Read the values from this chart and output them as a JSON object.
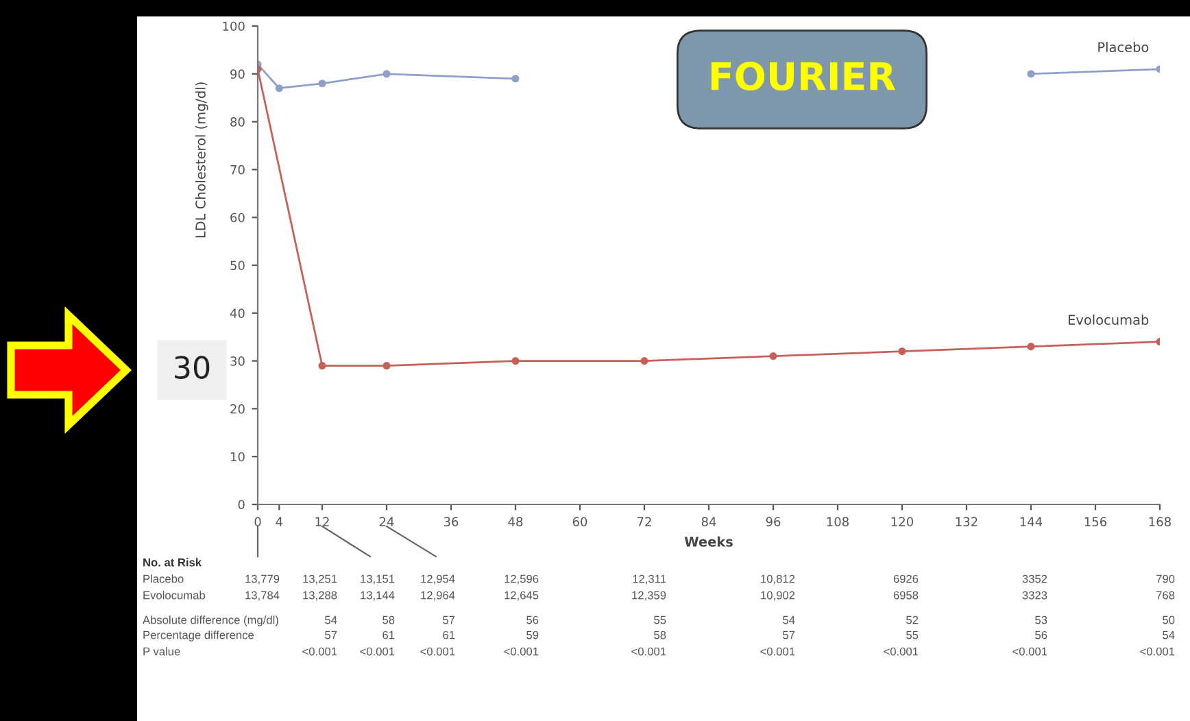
{
  "chart_data": {
    "type": "line",
    "title": "FOURIER",
    "xlabel": "Weeks",
    "ylabel": "LDL Cholesterol (mg/dl)",
    "x": [
      0,
      4,
      12,
      24,
      48,
      72,
      96,
      120,
      144,
      168
    ],
    "xlim": [
      0,
      168
    ],
    "xticks": [
      0,
      4,
      12,
      24,
      36,
      48,
      60,
      72,
      84,
      96,
      108,
      120,
      132,
      144,
      156,
      168
    ],
    "ylim": [
      0,
      100
    ],
    "yticks": [
      0,
      10,
      20,
      30,
      40,
      50,
      60,
      70,
      80,
      90,
      100
    ],
    "grid": false,
    "legend": false,
    "marker": "circle",
    "line_style": "solid",
    "series": [
      {
        "name": "Placebo",
        "color": "#8fa0c8",
        "values": [
          92,
          87,
          88,
          90,
          89,
          null,
          null,
          null,
          90,
          91
        ]
      },
      {
        "name": "Evolocumab",
        "color": "#c8605a",
        "x": [
          0,
          12,
          24,
          48,
          72,
          96,
          120,
          144,
          168
        ],
        "values": [
          91,
          29,
          29,
          30,
          30,
          31,
          32,
          33,
          34
        ]
      }
    ],
    "annotations": [
      "30",
      "No. at Risk",
      "Placebo",
      "13,779",
      "13,251",
      "13,151",
      "12,954",
      "12,596",
      "12,311",
      "10,812",
      "6926",
      "3352",
      "790",
      "Evolocumab",
      "13,784",
      "13,288",
      "13,144",
      "12,964",
      "12,645",
      "12,359",
      "10,902",
      "6958",
      "3323",
      "768",
      "Absolute difference (mg/dl)",
      "54",
      "58",
      "57",
      "56",
      "55",
      "54",
      "52",
      "53",
      "50",
      "Percentage difference",
      "57",
      "61",
      "61",
      "59",
      "58",
      "57",
      "55",
      "56",
      "54",
      "P value",
      "<0.001",
      "<0.001",
      "<0.001",
      "<0.001",
      "<0.001",
      "<0.001",
      "<0.001",
      "<0.001",
      "<0.001"
    ]
  }
}
